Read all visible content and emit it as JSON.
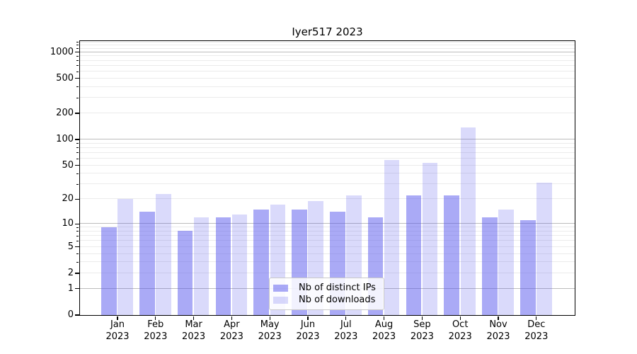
{
  "chart_data": {
    "type": "bar",
    "title": "Iyer517 2023",
    "months": [
      "Jan",
      "Feb",
      "Mar",
      "Apr",
      "May",
      "Jun",
      "Jul",
      "Aug",
      "Sep",
      "Oct",
      "Nov",
      "Dec"
    ],
    "year": "2023",
    "series": [
      {
        "name": "Nb of distinct IPs",
        "color": "#5555ee",
        "color_rgba": "rgba(85,85,238,0.5)",
        "values": [
          9,
          14,
          8,
          12,
          15,
          15,
          14,
          12,
          22,
          22,
          12,
          11
        ]
      },
      {
        "name": "Nb of downloads",
        "color": "#5555ee",
        "color_rgba": "rgba(85,85,238,0.22)",
        "values": [
          20,
          23,
          12,
          13,
          17,
          19,
          22,
          57,
          53,
          136,
          15,
          31
        ]
      }
    ],
    "yscale": "log1p",
    "ylim": [
      0,
      1340
    ],
    "yticks": [
      0,
      1,
      2,
      5,
      10,
      20,
      50,
      100,
      200,
      500,
      1000
    ],
    "ygrid_major": [
      1,
      10,
      100,
      1000
    ],
    "ygrid_minor": [
      2,
      3,
      4,
      5,
      6,
      7,
      8,
      9,
      20,
      30,
      40,
      50,
      60,
      70,
      80,
      90,
      200,
      300,
      400,
      500,
      600,
      700,
      800,
      900,
      1100,
      1200,
      1300
    ],
    "grid": true,
    "legend_position": "inside-bottom-center",
    "xlabel": "",
    "ylabel": ""
  },
  "colors": {
    "grid_major": "#bcbcbc",
    "grid_minor": "#ebebeb",
    "axis": "#000000",
    "text": "#000000"
  }
}
